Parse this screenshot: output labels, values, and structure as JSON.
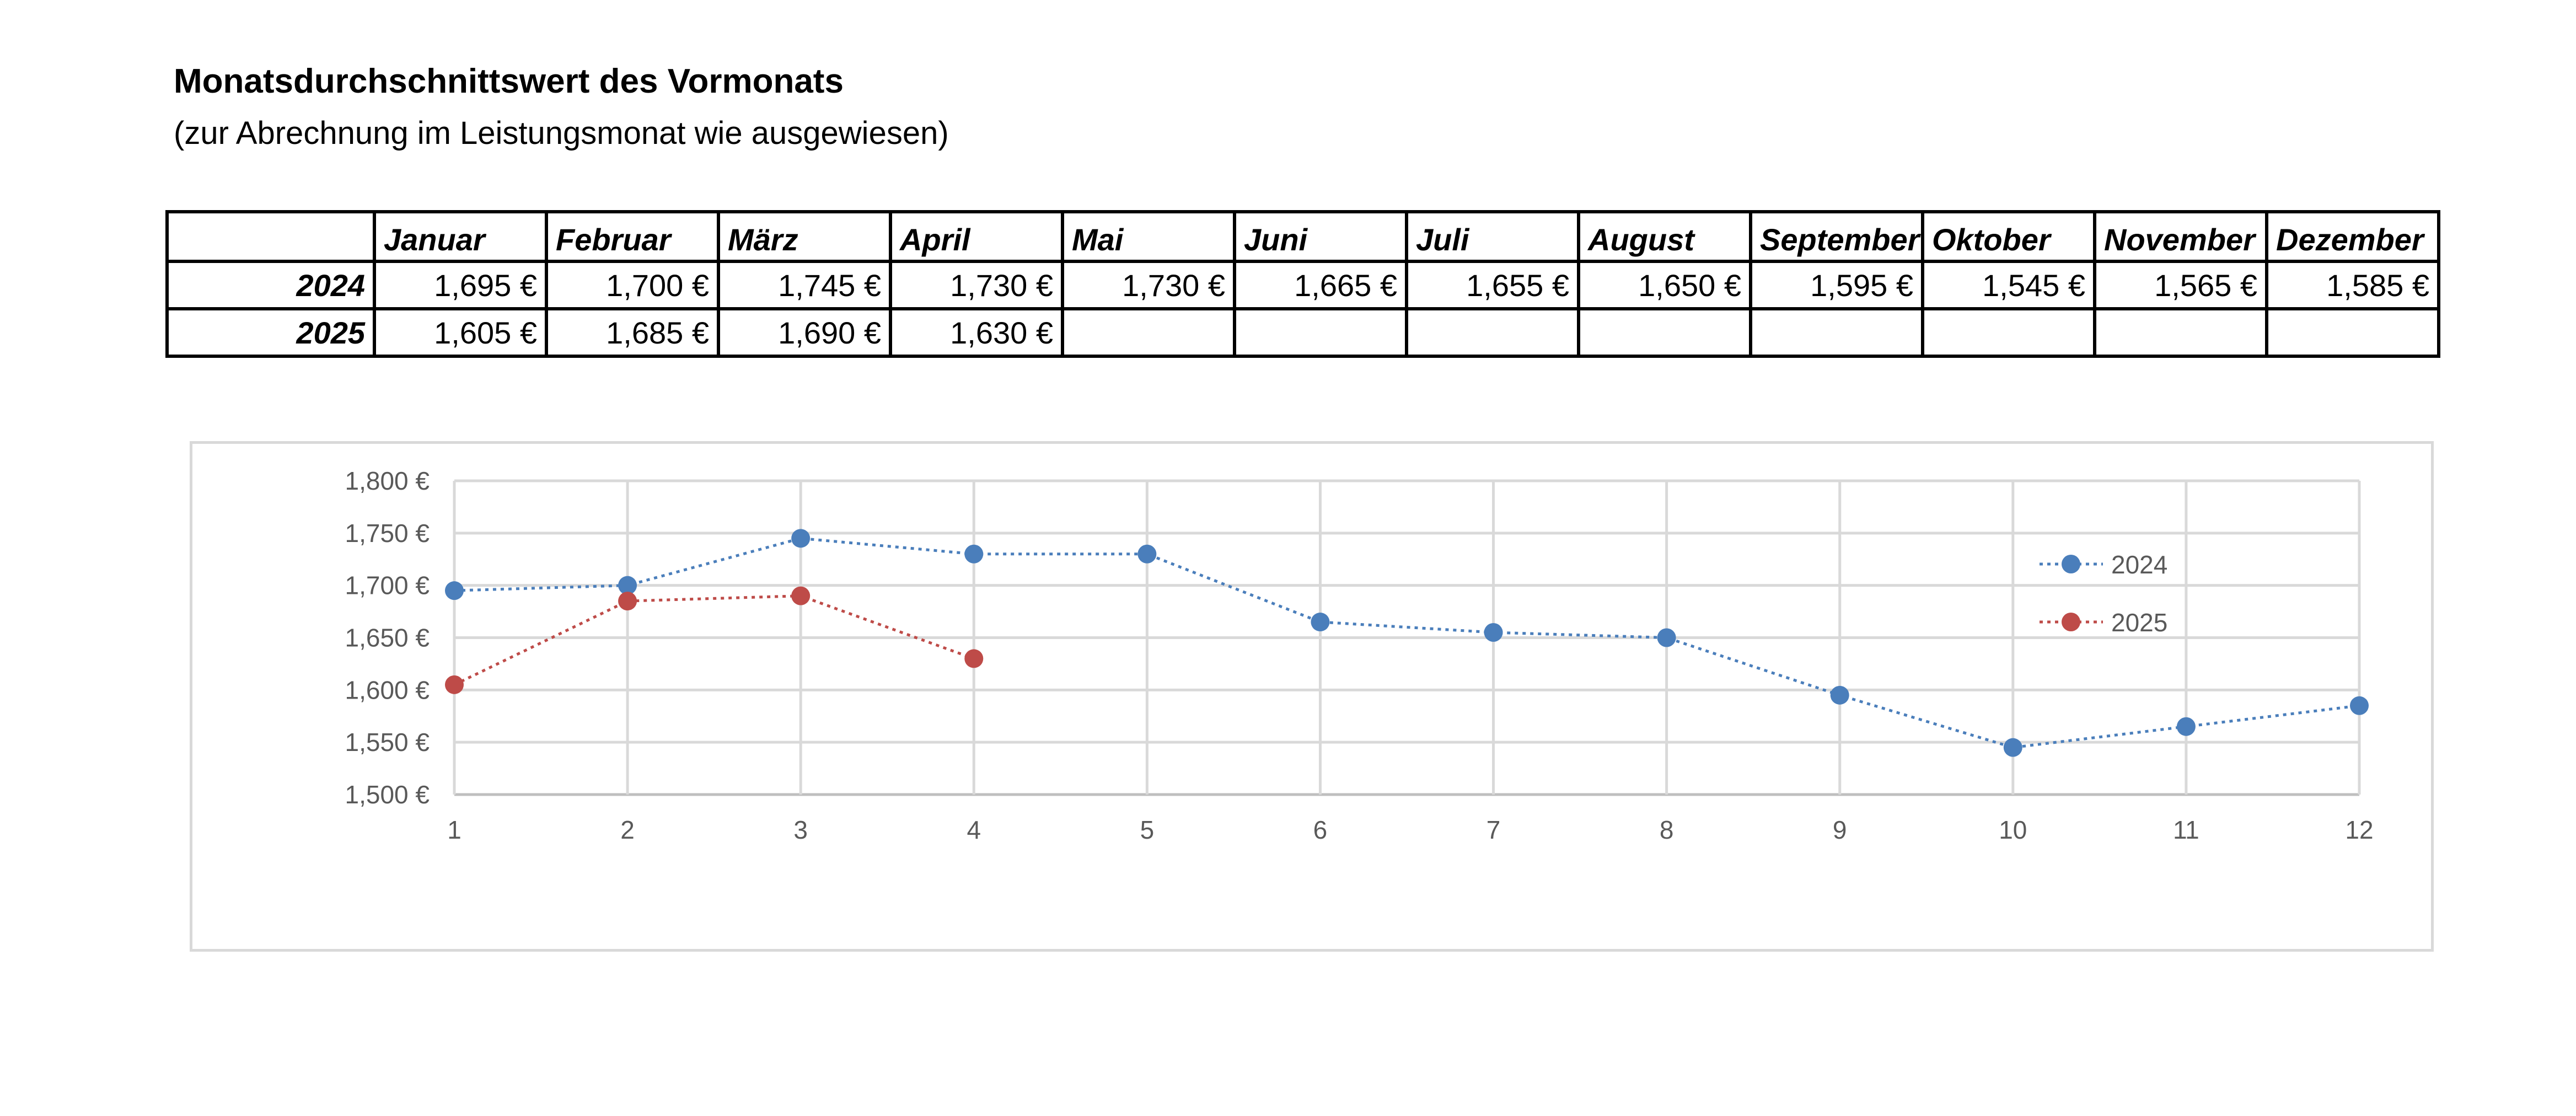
{
  "header": {
    "title": "Monatsdurchschnittswert des Vormonats",
    "subtitle": "(zur Abrechnung im Leistungsmonat wie ausgewiesen)"
  },
  "table": {
    "months": [
      "Januar",
      "Februar",
      "März",
      "April",
      "Mai",
      "Juni",
      "Juli",
      "August",
      "September",
      "Oktober",
      "November",
      "Dezember"
    ],
    "rows": [
      {
        "year": "2024",
        "values": [
          "1,695 €",
          "1,700 €",
          "1,745 €",
          "1,730 €",
          "1,730 €",
          "1,665 €",
          "1,655 €",
          "1,650 €",
          "1,595 €",
          "1,545 €",
          "1,565 €",
          "1,585 €"
        ]
      },
      {
        "year": "2025",
        "values": [
          "1,605 €",
          "1,685 €",
          "1,690 €",
          "1,630 €",
          "",
          "",
          "",
          "",
          "",
          "",
          "",
          ""
        ]
      }
    ]
  },
  "chart_data": {
    "type": "line",
    "x": [
      1,
      2,
      3,
      4,
      5,
      6,
      7,
      8,
      9,
      10,
      11,
      12
    ],
    "x_tick_labels": [
      "1",
      "2",
      "3",
      "4",
      "5",
      "6",
      "7",
      "8",
      "9",
      "10",
      "11",
      "12"
    ],
    "y_tick_labels": [
      "1,500 €",
      "1,550 €",
      "1,600 €",
      "1,650 €",
      "1,700 €",
      "1,750 €",
      "1,800 €"
    ],
    "y_ticks": [
      1.5,
      1.55,
      1.6,
      1.65,
      1.7,
      1.75,
      1.8
    ],
    "ylim": [
      1.5,
      1.8
    ],
    "xlim": [
      1,
      12
    ],
    "grid": true,
    "legend_position": "right",
    "line_style": "dotted",
    "series": [
      {
        "name": "2024",
        "color": "#4a7ebb",
        "values": [
          1.695,
          1.7,
          1.745,
          1.73,
          1.73,
          1.665,
          1.655,
          1.65,
          1.595,
          1.545,
          1.565,
          1.585
        ]
      },
      {
        "name": "2025",
        "color": "#be4b48",
        "values": [
          1.605,
          1.685,
          1.69,
          1.63,
          null,
          null,
          null,
          null,
          null,
          null,
          null,
          null
        ]
      }
    ]
  }
}
